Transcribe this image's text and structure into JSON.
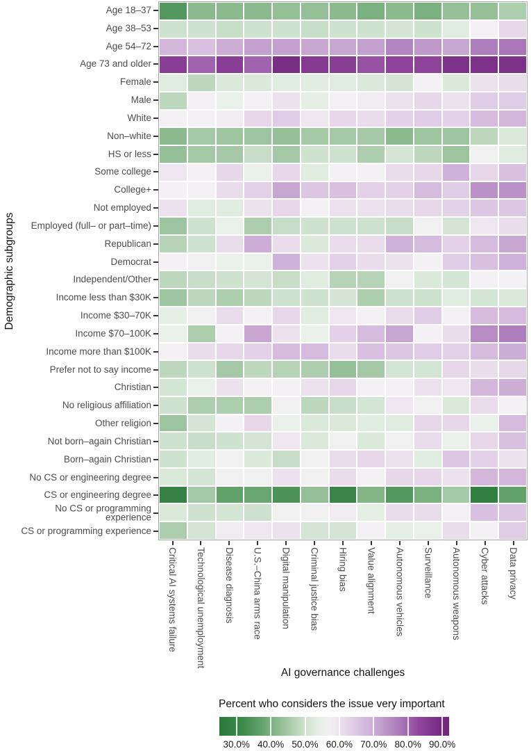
{
  "figure": {
    "y_axis_title": "Demographic subgroups",
    "x_axis_title": "AI governance challenges"
  },
  "legend": {
    "title": "Percent who considers the issue very important",
    "tick_labels": [
      "30.0%",
      "40.0%",
      "50.0%",
      "60.0%",
      "70.0%",
      "80.0%",
      "90.0%"
    ],
    "tick_values": [
      30,
      40,
      50,
      60,
      70,
      80,
      90
    ],
    "domain": [
      25,
      92
    ]
  },
  "chart_data": {
    "type": "heatmap",
    "xlabel": "AI governance challenges",
    "ylabel": "Demographic subgroups",
    "legend_title": "Percent who considers the issue very important",
    "unit": "percent who considers the issue very important",
    "columns": [
      "Critical AI systems failure",
      "Technological unemployment",
      "Disease diagnosis",
      "U.S.–China arms race",
      "Digital manipulation",
      "Criminal justice bias",
      "Hiring bias",
      "Value alignment",
      "Autonomous vehicles",
      "Surveillance",
      "Autonomous weapons",
      "Cyber attacks",
      "Data privacy"
    ],
    "rows": [
      "Age 18–37",
      "Age 38–53",
      "Age 54–72",
      "Age 73 and older",
      "Female",
      "Male",
      "White",
      "Non–white",
      "HS or less",
      "Some college",
      "College+",
      "Not employed",
      "Employed (full– or part–time)",
      "Republican",
      "Democrat",
      "Independent/Other",
      "Income less than $30K",
      "Income $30–70K",
      "Income $70–100K",
      "Income more than $100K",
      "Prefer not to say income",
      "Christian",
      "No religious affiliation",
      "Other religion",
      "Not born–again Christian",
      "Born–again Christian",
      "No CS or engineering degree",
      "CS or engineering degree",
      "No CS or programming\nexperience",
      "CS or programming experience"
    ],
    "values": [
      [
        35,
        42,
        42,
        42,
        43,
        43,
        42,
        40,
        42,
        40,
        43,
        43,
        46
      ],
      [
        50,
        50,
        49,
        50,
        50,
        49,
        50,
        50,
        51,
        50,
        53,
        57,
        62
      ],
      [
        68,
        66,
        70,
        72,
        72,
        71,
        71,
        72,
        76,
        73,
        71,
        77,
        78
      ],
      [
        85,
        80,
        85,
        80,
        89,
        86,
        85,
        82,
        84,
        84,
        88,
        88,
        88
      ],
      [
        53,
        48,
        52,
        52,
        53,
        53,
        53,
        52,
        51,
        57,
        52,
        60,
        61
      ],
      [
        48,
        57,
        55,
        57,
        60,
        54,
        57,
        58,
        60,
        62,
        60,
        64,
        64
      ],
      [
        57,
        57,
        58,
        62,
        64,
        59,
        62,
        61,
        63,
        64,
        63,
        67,
        68
      ],
      [
        42,
        45,
        44,
        44,
        43,
        45,
        45,
        45,
        42,
        44,
        44,
        48,
        52
      ],
      [
        43,
        45,
        45,
        49,
        45,
        50,
        50,
        46,
        51,
        48,
        44,
        56,
        53
      ],
      [
        59,
        57,
        62,
        55,
        62,
        53,
        57,
        57,
        61,
        62,
        69,
        62,
        66
      ],
      [
        57,
        57,
        61,
        63,
        71,
        65,
        66,
        63,
        63,
        67,
        64,
        74,
        74
      ],
      [
        60,
        53,
        53,
        60,
        62,
        57,
        60,
        60,
        61,
        62,
        63,
        65,
        65
      ],
      [
        44,
        50,
        55,
        46,
        49,
        50,
        50,
        50,
        49,
        56,
        51,
        59,
        61
      ],
      [
        47,
        50,
        61,
        70,
        61,
        52,
        61,
        61,
        69,
        67,
        63,
        67,
        71
      ],
      [
        57,
        56,
        55,
        55,
        69,
        60,
        63,
        61,
        60,
        57,
        64,
        66,
        69
      ],
      [
        48,
        49,
        50,
        51,
        49,
        53,
        47,
        47,
        56,
        52,
        51,
        57,
        57
      ],
      [
        44,
        48,
        46,
        48,
        50,
        50,
        51,
        46,
        50,
        50,
        53,
        51,
        52
      ],
      [
        54,
        56,
        61,
        57,
        62,
        53,
        59,
        57,
        61,
        64,
        57,
        67,
        67
      ],
      [
        55,
        46,
        57,
        71,
        60,
        55,
        63,
        67,
        71,
        57,
        61,
        75,
        77
      ],
      [
        57,
        61,
        62,
        63,
        67,
        67,
        61,
        66,
        65,
        64,
        63,
        67,
        70
      ],
      [
        48,
        50,
        45,
        48,
        47,
        46,
        43,
        45,
        51,
        51,
        62,
        61,
        62
      ],
      [
        51,
        55,
        60,
        57,
        57,
        60,
        62,
        57,
        57,
        60,
        59,
        68,
        70
      ],
      [
        50,
        46,
        46,
        46,
        56,
        48,
        49,
        51,
        59,
        56,
        52,
        61,
        57
      ],
      [
        44,
        51,
        57,
        62,
        55,
        52,
        52,
        53,
        53,
        62,
        62,
        55,
        67
      ],
      [
        50,
        49,
        50,
        51,
        59,
        52,
        56,
        52,
        56,
        61,
        55,
        62,
        66
      ],
      [
        50,
        53,
        56,
        52,
        49,
        56,
        61,
        62,
        60,
        53,
        65,
        63,
        60
      ],
      [
        52,
        51,
        56,
        56,
        60,
        56,
        61,
        57,
        62,
        62,
        60,
        68,
        68
      ],
      [
        29,
        45,
        37,
        38,
        34,
        43,
        30,
        41,
        35,
        40,
        45,
        28,
        37
      ],
      [
        52,
        50,
        51,
        50,
        56,
        56,
        58,
        54,
        61,
        61,
        57,
        66,
        65
      ],
      [
        46,
        51,
        58,
        59,
        60,
        51,
        51,
        57,
        54,
        55,
        61,
        57,
        64
      ]
    ],
    "color_scale": {
      "palette": "PRGn diverging (green = low, white = middle, purple = high)",
      "domain": [
        25,
        92
      ],
      "stops": [
        [
          25,
          "#27783a"
        ],
        [
          32,
          "#3f8a4c"
        ],
        [
          38,
          "#6aa671"
        ],
        [
          44,
          "#9cc49e"
        ],
        [
          50,
          "#cfe2cf"
        ],
        [
          54,
          "#e6efe6"
        ],
        [
          57,
          "#f3f1f3"
        ],
        [
          60,
          "#ece2ee"
        ],
        [
          63,
          "#e3d2e7"
        ],
        [
          66,
          "#d8c1e0"
        ],
        [
          70,
          "#cbadd6"
        ],
        [
          74,
          "#bb92c7"
        ],
        [
          78,
          "#a977b8"
        ],
        [
          83,
          "#92479e"
        ],
        [
          88,
          "#7c3189"
        ],
        [
          92,
          "#6f2379"
        ]
      ]
    },
    "layout": {
      "grid": "white gaps between cells",
      "legend_position": "bottom",
      "x_labels_rotated": "90deg reading top-to-bottom"
    }
  }
}
